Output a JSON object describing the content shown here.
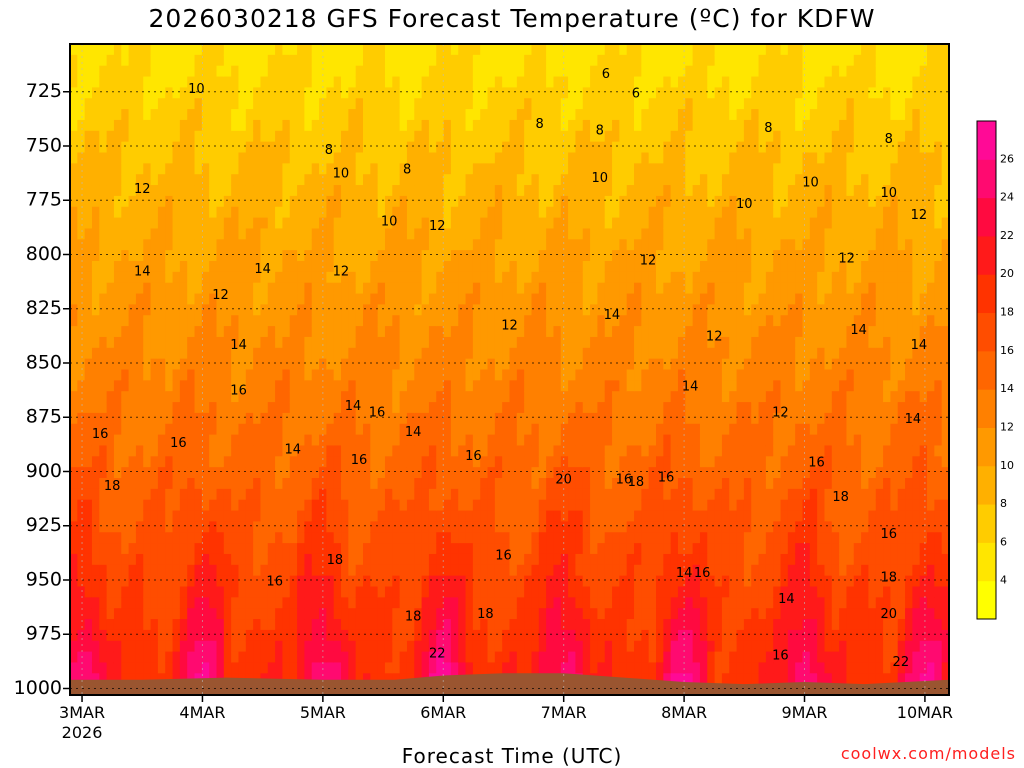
{
  "page": {
    "title": "2026030218 GFS Forecast Temperature (ºC) for KDFW",
    "credit": "coolwx.com/models"
  },
  "chart_data": {
    "type": "heatmap",
    "title": "2026030218 GFS Forecast Temperature (ºC) for KDFW",
    "xlabel": "Forecast Time (UTC)",
    "ylabel": "",
    "x_ticks": [
      {
        "label": "3MAR",
        "sub": "2026",
        "day": 0
      },
      {
        "label": "4MAR",
        "day": 1
      },
      {
        "label": "5MAR",
        "day": 2
      },
      {
        "label": "6MAR",
        "day": 3
      },
      {
        "label": "7MAR",
        "day": 4
      },
      {
        "label": "8MAR",
        "day": 5
      },
      {
        "label": "9MAR",
        "day": 6
      },
      {
        "label": "10MAR",
        "day": 7
      }
    ],
    "xlim": [
      -0.1,
      7.2
    ],
    "y_ticks": [
      725,
      750,
      775,
      800,
      825,
      850,
      875,
      900,
      925,
      950,
      975,
      1000
    ],
    "ylim": [
      1003,
      703
    ],
    "colorbar": {
      "ticks": [
        4,
        6,
        8,
        10,
        12,
        14,
        16,
        18,
        20,
        22,
        24,
        26
      ],
      "levels": [
        2,
        4,
        6,
        8,
        10,
        12,
        14,
        16,
        18,
        20,
        22,
        24,
        26,
        28
      ],
      "colors": [
        "#ffff00",
        "#ffe600",
        "#ffcc00",
        "#ffb000",
        "#ff9900",
        "#ff8000",
        "#ff6600",
        "#ff4d00",
        "#ff3300",
        "#ff1a1a",
        "#ff0a40",
        "#ff0a70",
        "#ff0a96"
      ]
    },
    "surface_pressure": [
      {
        "day": -0.1,
        "p": 996
      },
      {
        "day": 0.5,
        "p": 996
      },
      {
        "day": 1.2,
        "p": 995
      },
      {
        "day": 2.0,
        "p": 996
      },
      {
        "day": 2.6,
        "p": 996
      },
      {
        "day": 3.0,
        "p": 994
      },
      {
        "day": 3.5,
        "p": 993
      },
      {
        "day": 4.0,
        "p": 993
      },
      {
        "day": 4.5,
        "p": 995
      },
      {
        "day": 5.0,
        "p": 997
      },
      {
        "day": 5.5,
        "p": 998
      },
      {
        "day": 6.0,
        "p": 997
      },
      {
        "day": 6.5,
        "p": 998
      },
      {
        "day": 7.2,
        "p": 996
      }
    ],
    "contour_labels": [
      {
        "text": "10",
        "day": 0.95,
        "p": 724
      },
      {
        "text": "6",
        "day": 4.35,
        "p": 717
      },
      {
        "text": "6",
        "day": 4.6,
        "p": 726
      },
      {
        "text": "8",
        "day": 2.05,
        "p": 752
      },
      {
        "text": "8",
        "day": 2.7,
        "p": 761
      },
      {
        "text": "8",
        "day": 3.8,
        "p": 740
      },
      {
        "text": "8",
        "day": 4.3,
        "p": 743
      },
      {
        "text": "8",
        "day": 5.7,
        "p": 742
      },
      {
        "text": "8",
        "day": 6.7,
        "p": 747
      },
      {
        "text": "10",
        "day": 2.15,
        "p": 763
      },
      {
        "text": "10",
        "day": 2.55,
        "p": 785
      },
      {
        "text": "10",
        "day": 4.3,
        "p": 765
      },
      {
        "text": "10",
        "day": 5.5,
        "p": 777
      },
      {
        "text": "10",
        "day": 6.05,
        "p": 767
      },
      {
        "text": "10",
        "day": 6.7,
        "p": 772
      },
      {
        "text": "12",
        "day": 0.5,
        "p": 770
      },
      {
        "text": "12",
        "day": 2.95,
        "p": 787
      },
      {
        "text": "12",
        "day": 4.7,
        "p": 803
      },
      {
        "text": "12",
        "day": 6.95,
        "p": 782
      },
      {
        "text": "12",
        "day": 6.35,
        "p": 802
      },
      {
        "text": "12",
        "day": 1.15,
        "p": 819
      },
      {
        "text": "12",
        "day": 2.15,
        "p": 808
      },
      {
        "text": "12",
        "day": 3.55,
        "p": 833
      },
      {
        "text": "12",
        "day": 5.25,
        "p": 838
      },
      {
        "text": "12",
        "day": 5.8,
        "p": 873
      },
      {
        "text": "14",
        "day": 0.5,
        "p": 808
      },
      {
        "text": "14",
        "day": 1.5,
        "p": 807
      },
      {
        "text": "14",
        "day": 1.3,
        "p": 842
      },
      {
        "text": "14",
        "day": 4.4,
        "p": 828
      },
      {
        "text": "14",
        "day": 5.05,
        "p": 861
      },
      {
        "text": "14",
        "day": 6.45,
        "p": 835
      },
      {
        "text": "14",
        "day": 6.95,
        "p": 842
      },
      {
        "text": "14",
        "day": 2.25,
        "p": 870
      },
      {
        "text": "14",
        "day": 2.75,
        "p": 882
      },
      {
        "text": "14",
        "day": 1.75,
        "p": 890
      },
      {
        "text": "14",
        "day": 6.9,
        "p": 876
      },
      {
        "text": "14",
        "day": 5.0,
        "p": 947
      },
      {
        "text": "14",
        "day": 5.85,
        "p": 959
      },
      {
        "text": "16",
        "day": 0.15,
        "p": 883
      },
      {
        "text": "16",
        "day": 1.3,
        "p": 863
      },
      {
        "text": "16",
        "day": 0.8,
        "p": 887
      },
      {
        "text": "16",
        "day": 2.45,
        "p": 873
      },
      {
        "text": "16",
        "day": 2.3,
        "p": 895
      },
      {
        "text": "16",
        "day": 3.25,
        "p": 893
      },
      {
        "text": "16",
        "day": 3.5,
        "p": 939
      },
      {
        "text": "16",
        "day": 4.5,
        "p": 904
      },
      {
        "text": "16",
        "day": 1.6,
        "p": 951
      },
      {
        "text": "16",
        "day": 4.85,
        "p": 903
      },
      {
        "text": "16",
        "day": 5.15,
        "p": 947
      },
      {
        "text": "16",
        "day": 6.1,
        "p": 896
      },
      {
        "text": "16",
        "day": 6.7,
        "p": 929
      },
      {
        "text": "16",
        "day": 5.8,
        "p": 985
      },
      {
        "text": "18",
        "day": 0.25,
        "p": 907
      },
      {
        "text": "18",
        "day": 2.1,
        "p": 941
      },
      {
        "text": "18",
        "day": 2.75,
        "p": 967
      },
      {
        "text": "18",
        "day": 3.35,
        "p": 966
      },
      {
        "text": "18",
        "day": 4.6,
        "p": 905
      },
      {
        "text": "18",
        "day": 6.3,
        "p": 912
      },
      {
        "text": "18",
        "day": 6.7,
        "p": 949
      },
      {
        "text": "20",
        "day": 4.0,
        "p": 904
      },
      {
        "text": "20",
        "day": 6.7,
        "p": 966
      },
      {
        "text": "22",
        "day": 2.95,
        "p": 984
      },
      {
        "text": "22",
        "day": 6.8,
        "p": 988
      }
    ]
  }
}
